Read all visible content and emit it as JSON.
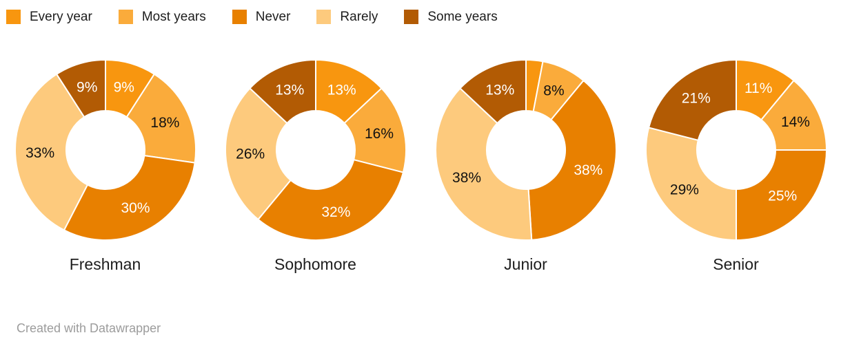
{
  "legend": {
    "items": [
      {
        "label": "Every year",
        "color": "#F8960F"
      },
      {
        "label": "Most years",
        "color": "#FAAB3B"
      },
      {
        "label": "Never",
        "color": "#E88000"
      },
      {
        "label": "Rarely",
        "color": "#FDCA7D"
      },
      {
        "label": "Some years",
        "color": "#B25B04"
      }
    ]
  },
  "footer": {
    "attribution": "Created with Datawrapper"
  },
  "chart_data": {
    "type": "pie",
    "subtype": "donut-small-multiples",
    "legend_position": "top-left",
    "start_angle": "top",
    "direction": "clockwise",
    "categories": [
      "Every year",
      "Most years",
      "Never",
      "Rarely",
      "Some years"
    ],
    "palette": [
      "#F8960F",
      "#FAAB3B",
      "#E88000",
      "#FDCA7D",
      "#B25B04"
    ],
    "label_text_colors": [
      "#ffffff",
      "#111111",
      "#ffffff",
      "#111111",
      "#ffffff"
    ],
    "charts": [
      {
        "title": "Freshman",
        "values": [
          9,
          18,
          30,
          33,
          9
        ],
        "labels": [
          "9%",
          "18%",
          "30%",
          "33%",
          "9%"
        ]
      },
      {
        "title": "Sophomore",
        "values": [
          13,
          16,
          32,
          26,
          13
        ],
        "labels": [
          "13%",
          "16%",
          "32%",
          "26%",
          "13%"
        ]
      },
      {
        "title": "Junior",
        "values": [
          3,
          8,
          38,
          38,
          13
        ],
        "labels": [
          "",
          "8%",
          "38%",
          "38%",
          "13%"
        ]
      },
      {
        "title": "Senior",
        "values": [
          11,
          14,
          25,
          29,
          21
        ],
        "labels": [
          "11%",
          "14%",
          "25%",
          "29%",
          "21%"
        ]
      }
    ]
  }
}
